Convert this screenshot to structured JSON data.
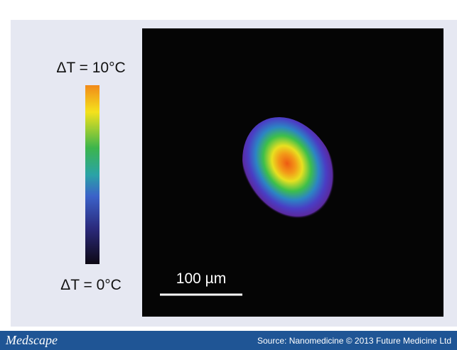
{
  "colorbar": {
    "max_label": "ΔT = 10°C",
    "min_label": "ΔT = 0°C"
  },
  "scale_bar": {
    "label": "100 µm"
  },
  "footer": {
    "logo": "Medscape",
    "source": "Source: Nanomedicine © 2013 Future Medicine Ltd"
  }
}
